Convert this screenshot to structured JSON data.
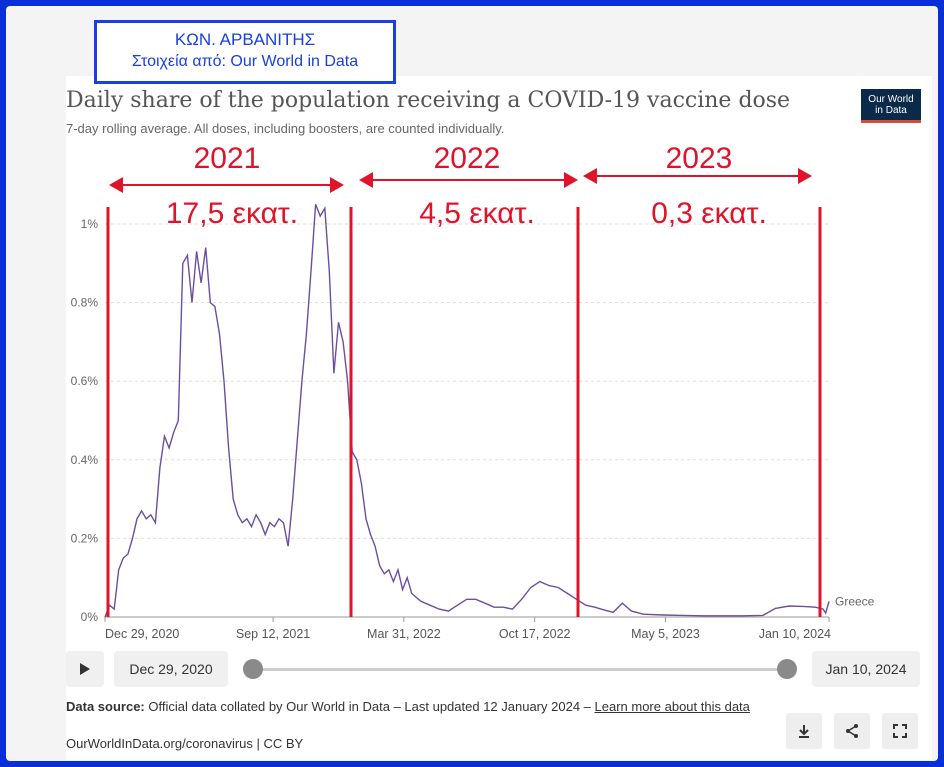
{
  "author_box": {
    "line1": "ΚΩΝ.  ΑΡΒΑΝΙΤΗΣ",
    "line2": "Στοιχεία από: Our World in Data"
  },
  "header": {
    "title": "Daily share of the population receiving a COVID-19 vaccine dose",
    "subtitle": "7-day rolling average. All doses, including boosters, are counted individually.",
    "logo_line1": "Our World",
    "logo_line2": "in Data"
  },
  "annotations": [
    {
      "year": "2021",
      "amount": "17,5  εκατ."
    },
    {
      "year": "2022",
      "amount": "4,5 εκατ."
    },
    {
      "year": "2023",
      "amount": "0,3 εκατ."
    }
  ],
  "chart_data": {
    "type": "line",
    "title": "Daily share of the population receiving a COVID-19 vaccine dose",
    "subtitle": "7-day rolling average. All doses, including boosters, are counted individually.",
    "y_unit": "%",
    "ylim": [
      0,
      1.0
    ],
    "yticks": [
      0,
      0.2,
      0.4,
      0.6,
      0.8,
      1.0
    ],
    "ytick_labels": [
      "0%",
      "0.2%",
      "0.4%",
      "0.6%",
      "0.8%",
      "1%"
    ],
    "xlim": [
      "2020-12-29",
      "2024-01-10"
    ],
    "xticks": [
      "2020-12-29",
      "2021-09-12",
      "2022-03-31",
      "2022-10-17",
      "2023-05-05",
      "2024-01-10"
    ],
    "xtick_labels": [
      "Dec 29, 2020",
      "Sep 12, 2021",
      "Mar 31, 2022",
      "Oct 17, 2022",
      "May 5, 2023",
      "Jan 10, 2024"
    ],
    "grid": true,
    "series": [
      {
        "name": "Greece",
        "color": "#6a4fa0",
        "points": [
          [
            "2020-12-29",
            0.0
          ],
          [
            "2021-01-05",
            0.03
          ],
          [
            "2021-01-12",
            0.02
          ],
          [
            "2021-01-19",
            0.12
          ],
          [
            "2021-01-26",
            0.15
          ],
          [
            "2021-02-02",
            0.16
          ],
          [
            "2021-02-09",
            0.2
          ],
          [
            "2021-02-16",
            0.25
          ],
          [
            "2021-02-23",
            0.27
          ],
          [
            "2021-03-02",
            0.25
          ],
          [
            "2021-03-09",
            0.26
          ],
          [
            "2021-03-16",
            0.24
          ],
          [
            "2021-03-23",
            0.38
          ],
          [
            "2021-03-30",
            0.46
          ],
          [
            "2021-04-06",
            0.43
          ],
          [
            "2021-04-13",
            0.47
          ],
          [
            "2021-04-20",
            0.5
          ],
          [
            "2021-04-27",
            0.9
          ],
          [
            "2021-05-04",
            0.92
          ],
          [
            "2021-05-11",
            0.8
          ],
          [
            "2021-05-18",
            0.93
          ],
          [
            "2021-05-25",
            0.85
          ],
          [
            "2021-06-01",
            0.94
          ],
          [
            "2021-06-08",
            0.8
          ],
          [
            "2021-06-15",
            0.79
          ],
          [
            "2021-06-22",
            0.72
          ],
          [
            "2021-06-29",
            0.6
          ],
          [
            "2021-07-06",
            0.43
          ],
          [
            "2021-07-13",
            0.3
          ],
          [
            "2021-07-20",
            0.26
          ],
          [
            "2021-07-27",
            0.24
          ],
          [
            "2021-08-03",
            0.25
          ],
          [
            "2021-08-10",
            0.23
          ],
          [
            "2021-08-17",
            0.26
          ],
          [
            "2021-08-24",
            0.24
          ],
          [
            "2021-08-31",
            0.21
          ],
          [
            "2021-09-07",
            0.24
          ],
          [
            "2021-09-14",
            0.23
          ],
          [
            "2021-09-21",
            0.25
          ],
          [
            "2021-09-28",
            0.24
          ],
          [
            "2021-10-05",
            0.18
          ],
          [
            "2021-10-12",
            0.3
          ],
          [
            "2021-10-19",
            0.45
          ],
          [
            "2021-10-26",
            0.6
          ],
          [
            "2021-11-02",
            0.72
          ],
          [
            "2021-11-09",
            0.88
          ],
          [
            "2021-11-16",
            1.05
          ],
          [
            "2021-11-23",
            1.02
          ],
          [
            "2021-11-30",
            1.04
          ],
          [
            "2021-12-07",
            0.88
          ],
          [
            "2021-12-14",
            0.62
          ],
          [
            "2021-12-21",
            0.75
          ],
          [
            "2021-12-28",
            0.7
          ],
          [
            "2022-01-04",
            0.6
          ],
          [
            "2022-01-11",
            0.42
          ],
          [
            "2022-01-18",
            0.4
          ],
          [
            "2022-01-25",
            0.34
          ],
          [
            "2022-02-01",
            0.25
          ],
          [
            "2022-02-08",
            0.21
          ],
          [
            "2022-02-15",
            0.18
          ],
          [
            "2022-02-22",
            0.13
          ],
          [
            "2022-03-01",
            0.11
          ],
          [
            "2022-03-08",
            0.12
          ],
          [
            "2022-03-15",
            0.09
          ],
          [
            "2022-03-22",
            0.12
          ],
          [
            "2022-03-29",
            0.07
          ],
          [
            "2022-04-05",
            0.1
          ],
          [
            "2022-04-12",
            0.06
          ],
          [
            "2022-04-19",
            0.05
          ],
          [
            "2022-04-26",
            0.04
          ],
          [
            "2022-05-10",
            0.03
          ],
          [
            "2022-05-24",
            0.02
          ],
          [
            "2022-06-07",
            0.015
          ],
          [
            "2022-06-21",
            0.03
          ],
          [
            "2022-07-05",
            0.045
          ],
          [
            "2022-07-19",
            0.045
          ],
          [
            "2022-08-02",
            0.035
          ],
          [
            "2022-08-16",
            0.025
          ],
          [
            "2022-08-30",
            0.025
          ],
          [
            "2022-09-13",
            0.02
          ],
          [
            "2022-09-27",
            0.045
          ],
          [
            "2022-10-11",
            0.075
          ],
          [
            "2022-10-25",
            0.09
          ],
          [
            "2022-11-08",
            0.08
          ],
          [
            "2022-11-22",
            0.075
          ],
          [
            "2022-12-06",
            0.06
          ],
          [
            "2022-12-20",
            0.045
          ],
          [
            "2023-01-03",
            0.03
          ],
          [
            "2023-01-17",
            0.025
          ],
          [
            "2023-01-31",
            0.018
          ],
          [
            "2023-02-14",
            0.012
          ],
          [
            "2023-02-28",
            0.035
          ],
          [
            "2023-03-14",
            0.015
          ],
          [
            "2023-04-01",
            0.007
          ],
          [
            "2023-05-01",
            0.005
          ],
          [
            "2023-06-01",
            0.004
          ],
          [
            "2023-07-01",
            0.003
          ],
          [
            "2023-08-01",
            0.003
          ],
          [
            "2023-09-01",
            0.003
          ],
          [
            "2023-10-01",
            0.004
          ],
          [
            "2023-10-20",
            0.022
          ],
          [
            "2023-11-10",
            0.028
          ],
          [
            "2023-12-01",
            0.027
          ],
          [
            "2023-12-20",
            0.025
          ],
          [
            "2024-01-01",
            0.02
          ],
          [
            "2024-01-05",
            0.01
          ],
          [
            "2024-01-10",
            0.04
          ]
        ]
      }
    ]
  },
  "controls": {
    "start_date": "Dec 29, 2020",
    "end_date": "Jan 10, 2024",
    "range_start": 0,
    "range_end": 1
  },
  "footer": {
    "source_label": "Data source:",
    "source_text": "Official data collated by Our World in Data – Last updated 12 January 2024 – ",
    "learn_more": "Learn more about this data",
    "url": "OurWorldInData.org/coronavirus | CC BY"
  },
  "icons": {
    "play": "play-icon",
    "download": "download-icon",
    "share": "share-icon",
    "fullscreen": "fullscreen-icon"
  }
}
